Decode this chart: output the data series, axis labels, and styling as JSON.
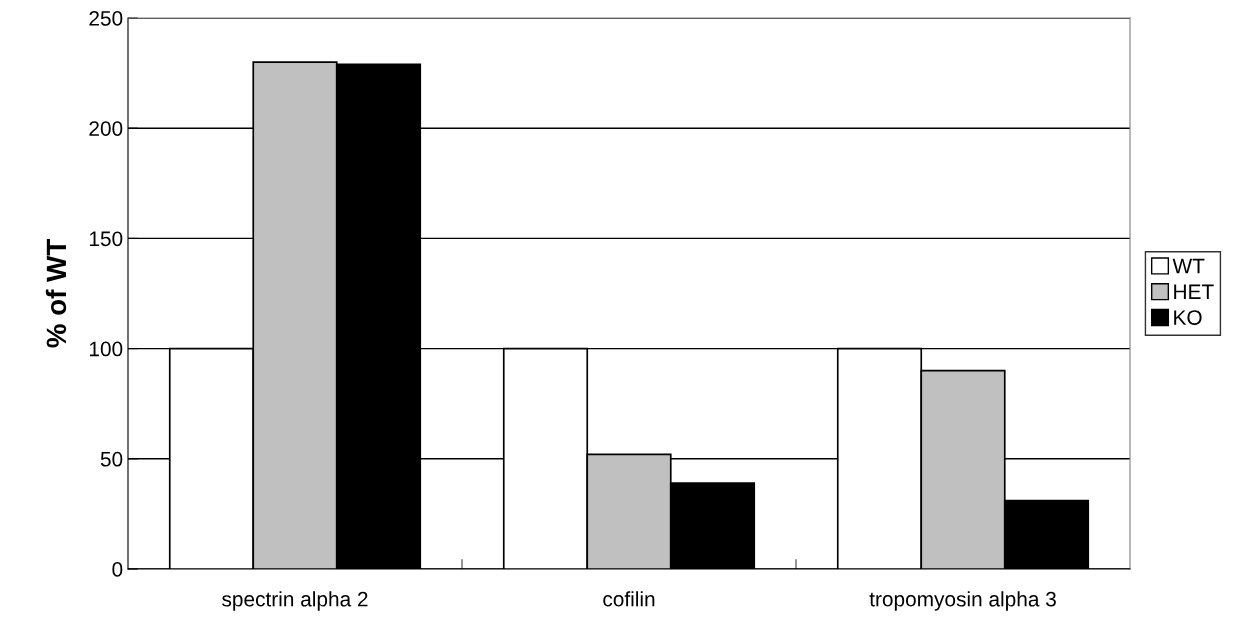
{
  "chart_data": {
    "type": "bar",
    "ylabel": "% of WT",
    "categories": [
      "spectrin alpha 2",
      "cofilin",
      "tropomyosin alpha 3"
    ],
    "series": [
      {
        "name": "WT",
        "color": "#ffffff",
        "values": [
          100,
          100,
          100
        ]
      },
      {
        "name": "HET",
        "color": "#c0c0c0",
        "values": [
          230,
          52,
          90
        ]
      },
      {
        "name": "KO",
        "color": "#000000",
        "values": [
          229,
          39,
          31
        ]
      }
    ],
    "ylim": [
      0,
      250
    ],
    "yticks": [
      0,
      50,
      100,
      150,
      200,
      250
    ],
    "grid": "y",
    "legend": "right"
  }
}
